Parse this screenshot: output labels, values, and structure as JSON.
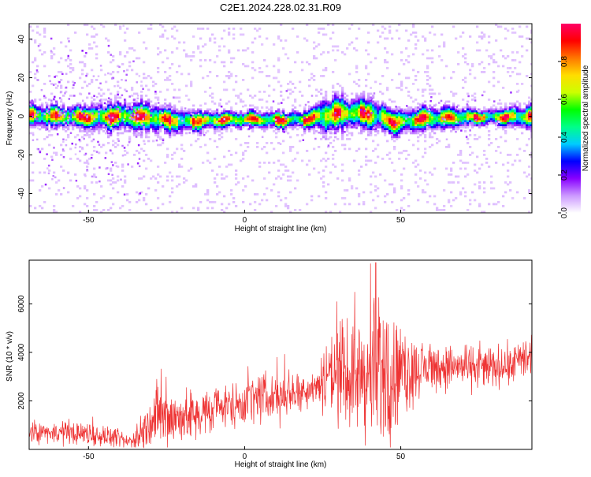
{
  "title": "C2E1.2024.228.02.31.R09",
  "colors": {
    "snr_line": "#ee3333",
    "frame": "#000000",
    "background": "#ffffff"
  },
  "chart_data": [
    {
      "type": "heatmap",
      "title": "C2E1.2024.228.02.31.R09",
      "xlabel": "Height of straight line (km)",
      "ylabel": "Frequency (Hz)",
      "xlim": [
        -69,
        92
      ],
      "ylim": [
        -50,
        48
      ],
      "xticks": [
        -50,
        0,
        50
      ],
      "yticks": [
        -40,
        -20,
        0,
        20,
        40
      ],
      "grid": false,
      "colorbar": {
        "label": "Normalized spectral amplitude",
        "range": [
          0,
          1
        ],
        "ticks": [
          "0.0",
          "0.2",
          "0.4",
          "0.6",
          "0.8"
        ],
        "colormap": [
          "#ffffff",
          "#cc99ff",
          "#8800ff",
          "#0000ff",
          "#00ccff",
          "#00ff88",
          "#00ff00",
          "#ccff00",
          "#ffdd00",
          "#ff7700",
          "#ff0000",
          "#ff0066"
        ]
      },
      "ridge": {
        "x": [
          -69,
          -60,
          -50,
          -40,
          -30,
          -25,
          -20,
          -10,
          0,
          10,
          20,
          25,
          30,
          35,
          40,
          45,
          48,
          55,
          60,
          70,
          80,
          92
        ],
        "freq": [
          1,
          0.5,
          0,
          0.5,
          0,
          -1.5,
          -2,
          -1.5,
          -1,
          -1.5,
          -1,
          1,
          2,
          2.5,
          1.5,
          -1,
          -3,
          -1,
          -0.5,
          0,
          0,
          0.5
        ],
        "width": [
          4,
          4,
          4,
          5,
          5,
          4,
          4,
          3,
          3,
          3,
          3,
          6,
          6,
          5,
          6,
          5,
          5,
          4,
          4,
          3,
          3,
          4
        ]
      }
    },
    {
      "type": "line",
      "xlabel": "Height of straight line (km)",
      "ylabel": "SNR (10 * v/v)",
      "xlim": [
        -69,
        92
      ],
      "ylim": [
        0,
        7800
      ],
      "xticks": [
        -50,
        0,
        50
      ],
      "yticks": [
        2000,
        4000,
        6000
      ],
      "grid": false,
      "envelope": {
        "x": [
          -69,
          -60,
          -50,
          -42,
          -38,
          -35,
          -30,
          -28,
          -25,
          -20,
          -10,
          0,
          10,
          20,
          24,
          26,
          30,
          35,
          40,
          42,
          45,
          50,
          55,
          60,
          70,
          80,
          92
        ],
        "center": [
          700,
          700,
          650,
          500,
          300,
          400,
          1100,
          1400,
          1250,
          1300,
          1600,
          2000,
          2200,
          2500,
          2700,
          3100,
          3100,
          3000,
          3000,
          3100,
          3000,
          3100,
          3300,
          3400,
          3400,
          3400,
          3700
        ],
        "spread": [
          350,
          350,
          400,
          300,
          250,
          400,
          800,
          1200,
          1100,
          900,
          700,
          800,
          900,
          600,
          700,
          1500,
          1700,
          1700,
          2400,
          2600,
          2300,
          1600,
          1000,
          800,
          700,
          700,
          700
        ],
        "peak": {
          "x": 42,
          "y": 7700
        }
      }
    }
  ]
}
